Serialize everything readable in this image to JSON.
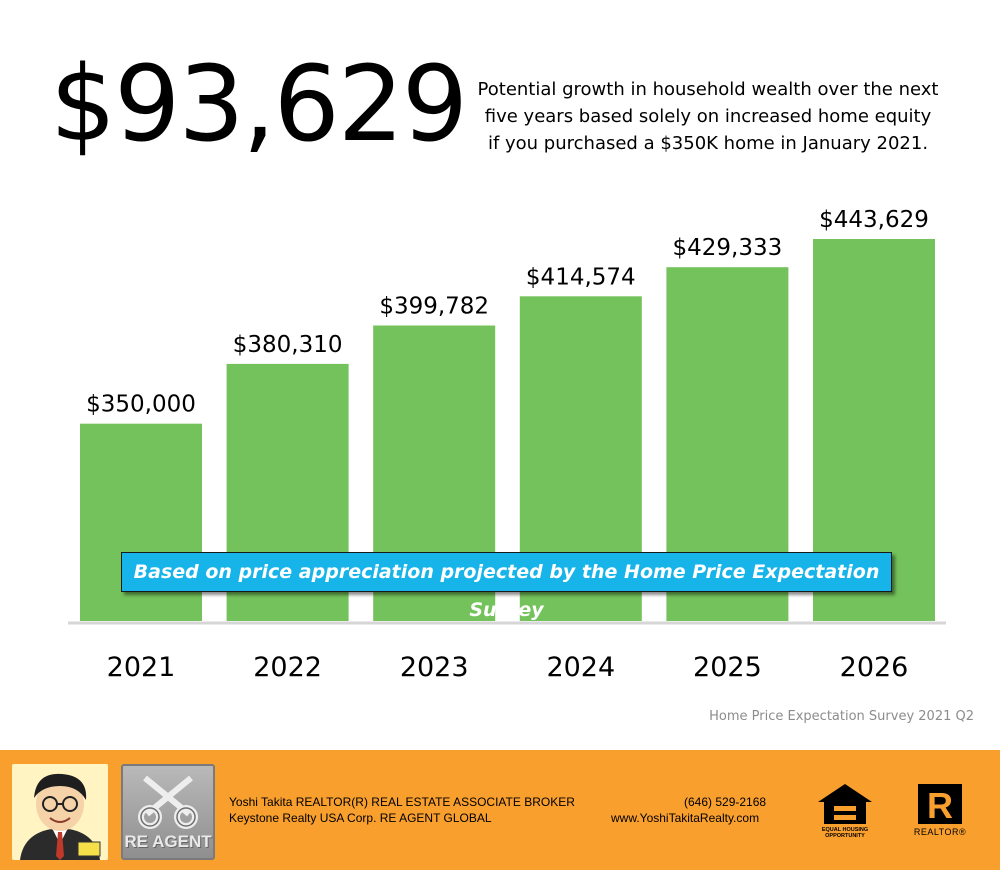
{
  "headline": "$93,629",
  "subtitle_lines": [
    "Potential growth in household wealth over the next",
    "five years based solely on increased home equity",
    "if you purchased a $350K home in January 2021."
  ],
  "note": "Based on price appreciation projected by the Home Price Expectation Survey",
  "source": "Home Price Expectation Survey 2021 Q2",
  "chart_data": {
    "type": "bar",
    "categories": [
      "2021",
      "2022",
      "2023",
      "2024",
      "2025",
      "2026"
    ],
    "values": [
      350000,
      380310,
      399782,
      414574,
      429333,
      443629
    ],
    "value_labels": [
      "$350,000",
      "$380,310",
      "$399,782",
      "$414,574",
      "$429,333",
      "$443,629"
    ],
    "ylim": [
      250000,
      443629
    ],
    "grid": false,
    "bar_color": "#74c25b"
  },
  "footer": {
    "name": "Yoshi Takita REALTOR(R) REAL ESTATE ASSOCIATE BROKER",
    "company": "Keystone Realty USA Corp.  RE AGENT GLOBAL",
    "phone": "(646) 529-2168",
    "website": "www.YoshiTakitaRealty.com",
    "re_agent_logo_text": "RE AGENT",
    "equal_housing_text": "EQUAL HOUSING OPPORTUNITY",
    "realtor_text": "REALTOR®",
    "background": "#f99f2e",
    "icons": [
      "caricature-portrait-icon",
      "keys-icon",
      "equal-housing-icon",
      "realtor-icon"
    ]
  },
  "colors": {
    "note_background": "#17b4ea",
    "source_text": "#8c8c8c"
  }
}
